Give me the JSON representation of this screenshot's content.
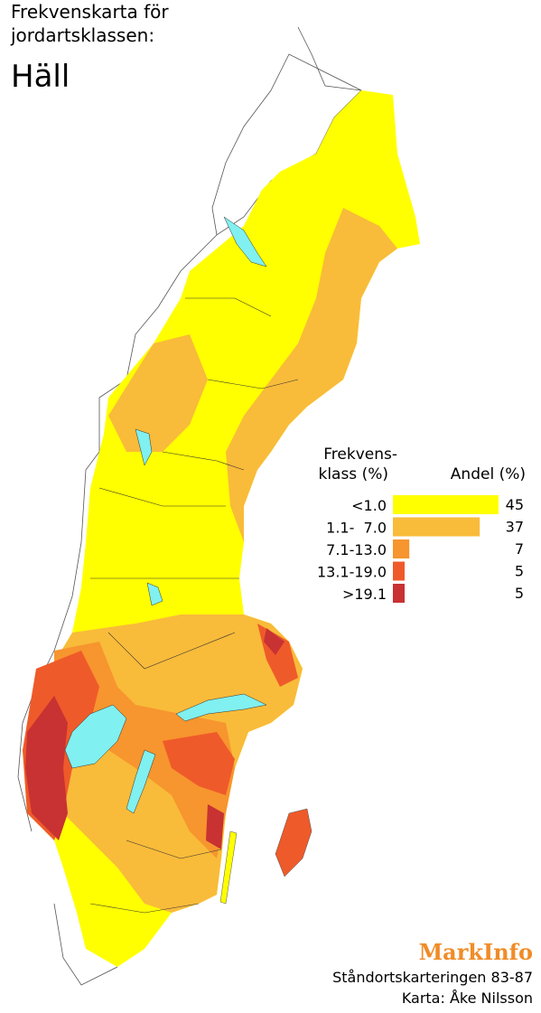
{
  "title": {
    "lines": [
      "Frekvenskarta för",
      "jordartsklassen:"
    ],
    "subject": "Häll"
  },
  "legend": {
    "class_header": [
      "Frekvens-",
      "klass (%)"
    ],
    "share_header": "Andel (%)",
    "items": [
      {
        "label": "<1.0",
        "color": "#ffff00",
        "share": 45
      },
      {
        "label": "1.1-  7.0",
        "color": "#f9bb3a",
        "share": 37
      },
      {
        "label": "7.1-13.0",
        "color": "#f7952e",
        "share": 7
      },
      {
        "label": "13.1-19.0",
        "color": "#ef5a2a",
        "share": 5
      },
      {
        "label": ">19.1",
        "color": "#c83232",
        "share": 5
      }
    ]
  },
  "footer": {
    "brand": "MarkInfo",
    "source": "Ståndortskarteringen 83-87",
    "author": "Karta: Åke Nilsson"
  }
}
